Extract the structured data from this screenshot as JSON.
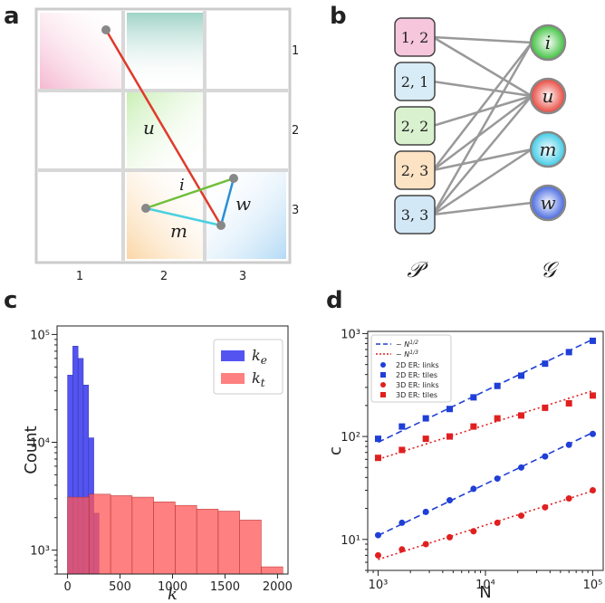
{
  "panels": {
    "a": "a",
    "b": "b",
    "c": "c",
    "d": "d"
  },
  "panel_a": {
    "column_labels": [
      "1",
      "2",
      "3"
    ],
    "row_labels": [
      "1",
      "2",
      "3"
    ],
    "edge_labels": {
      "u": "u",
      "i": "i",
      "m": "m",
      "w": "w"
    },
    "tile_colors": {
      "pink": "#f7c9dc",
      "teal": "#b7ddd3",
      "green": "#d5f2c4",
      "orange": "#fbe0bf",
      "blue": "#c9e4f6"
    },
    "line_colors": {
      "u": "#e03a2a",
      "i": "#6fbf3a",
      "m": "#4ad0e0",
      "w": "#2a8fd6"
    }
  },
  "panel_b": {
    "P_nodes": [
      {
        "label": "1, 2",
        "color": "#f6c6dc"
      },
      {
        "label": "2, 1",
        "color": "#d8ecf7"
      },
      {
        "label": "2, 2",
        "color": "#d9f1cf"
      },
      {
        "label": "2, 3",
        "color": "#fbe3c4"
      },
      {
        "label": "3, 3",
        "color": "#d3e8f7"
      }
    ],
    "G_nodes": [
      {
        "label": "i",
        "color": "#3cc13c"
      },
      {
        "label": "u",
        "color": "#e8453a"
      },
      {
        "label": "m",
        "color": "#3ccbe6"
      },
      {
        "label": "w",
        "color": "#4466e0"
      }
    ],
    "edges": [
      [
        0,
        0
      ],
      [
        0,
        1
      ],
      [
        1,
        1
      ],
      [
        2,
        1
      ],
      [
        3,
        0
      ],
      [
        3,
        1
      ],
      [
        3,
        2
      ],
      [
        4,
        0
      ],
      [
        4,
        1
      ],
      [
        4,
        2
      ],
      [
        4,
        3
      ]
    ],
    "P_caption": "𝒫",
    "G_caption": "𝒢"
  },
  "chart_data": [
    {
      "type": "bar",
      "panel": "c",
      "title": "",
      "xlabel": "k",
      "ylabel": "Count",
      "yscale": "log",
      "xlim": [
        -100,
        2100
      ],
      "ylim": [
        600,
        120000
      ],
      "xticks": [
        0,
        500,
        1000,
        1500,
        2000
      ],
      "xtick_labels": [
        "0",
        "500",
        "1000",
        "1500",
        "2000"
      ],
      "ytick_labels": [
        "10³",
        "10⁴",
        "10⁵"
      ],
      "legend": "top-right",
      "series": [
        {
          "name": "k_e",
          "legend_base": "k",
          "legend_sub": "e",
          "color": "#4b4bf0",
          "bins": [
            [
              0,
              50
            ],
            [
              50,
              100
            ],
            [
              100,
              150
            ],
            [
              150,
              200
            ],
            [
              200,
              250
            ],
            [
              250,
              300
            ]
          ],
          "values": [
            42000,
            78000,
            60000,
            34000,
            11000,
            2200
          ]
        },
        {
          "name": "k_t",
          "legend_base": "k",
          "legend_sub": "t",
          "color": "#ff5555",
          "bins": [
            [
              0,
              205
            ],
            [
              205,
              410
            ],
            [
              410,
              615
            ],
            [
              615,
              820
            ],
            [
              820,
              1025
            ],
            [
              1025,
              1230
            ],
            [
              1230,
              1435
            ],
            [
              1435,
              1640
            ],
            [
              1640,
              1845
            ],
            [
              1845,
              2050
            ]
          ],
          "values": [
            3100,
            3300,
            3200,
            3100,
            2800,
            2600,
            2400,
            2300,
            1900,
            700
          ]
        }
      ]
    },
    {
      "type": "scatter",
      "panel": "d",
      "xlabel": "N",
      "ylabel": "c",
      "xscale": "log",
      "yscale": "log",
      "xlim": [
        800,
        125000
      ],
      "ylim": [
        5,
        1050
      ],
      "xtick_labels": [
        "10³",
        "10⁴",
        "10⁵"
      ],
      "ytick_labels": [
        "10¹",
        "10²",
        "10³"
      ],
      "legend": "top-left",
      "fits": [
        {
          "name": "~ N^{1/2}",
          "label_base": "~ N",
          "label_exp": "1/2",
          "color": "#1f3fd6",
          "style": "dashed"
        },
        {
          "name": "~ N^{1/3}",
          "label_base": "~ N",
          "label_exp": "1/3",
          "color": "#e02020",
          "style": "dotted"
        }
      ],
      "series": [
        {
          "name": "2D ER: links",
          "color": "#1f3fd6",
          "marker": "circle",
          "fit_exp": 0.5,
          "x": [
            1000,
            1668,
            2783,
            4642,
            7743,
            12915,
            21544,
            35938,
            59948,
            100000
          ],
          "y": [
            11,
            14.5,
            18.5,
            24,
            31,
            39,
            50,
            64,
            83,
            106
          ]
        },
        {
          "name": "2D ER: tiles",
          "color": "#1f3fd6",
          "marker": "square",
          "fit_exp": 0.5,
          "x": [
            1000,
            1668,
            2783,
            4642,
            7743,
            12915,
            21544,
            35938,
            59948,
            100000
          ],
          "y": [
            95,
            125,
            150,
            185,
            240,
            310,
            390,
            510,
            660,
            850
          ]
        },
        {
          "name": "3D ER: links",
          "color": "#e02020",
          "marker": "circle",
          "fit_exp": 0.3333,
          "x": [
            1000,
            1668,
            2783,
            4642,
            7743,
            12915,
            21544,
            35938,
            59948,
            100000
          ],
          "y": [
            7,
            8,
            9,
            10.5,
            12,
            14.5,
            17,
            20.5,
            25,
            30
          ]
        },
        {
          "name": "3D ER: tiles",
          "color": "#e02020",
          "marker": "square",
          "fit_exp": 0.3333,
          "x": [
            1000,
            1668,
            2783,
            4642,
            7743,
            12915,
            21544,
            35938,
            59948,
            100000
          ],
          "y": [
            62,
            74,
            95,
            100,
            125,
            150,
            160,
            190,
            210,
            250
          ]
        }
      ]
    }
  ]
}
